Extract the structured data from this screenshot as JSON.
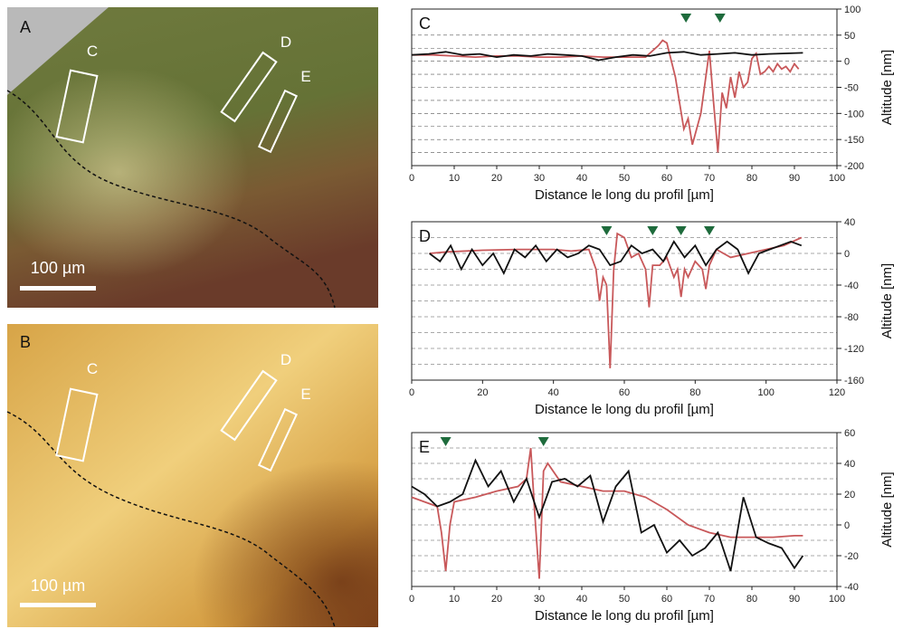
{
  "images": [
    {
      "label": "A",
      "regions": [
        "C",
        "D",
        "E"
      ],
      "scale_bar": "100 µm"
    },
    {
      "label": "B",
      "regions": [
        "C",
        "D",
        "E"
      ],
      "scale_bar": "100 µm"
    }
  ],
  "chart_data": [
    {
      "type": "line",
      "label": "C",
      "xlabel": "Distance le long du profil  [µm]",
      "ylabel": "Altitude [nm]",
      "xlim": [
        0,
        100
      ],
      "xticks": [
        0,
        10,
        20,
        30,
        40,
        50,
        60,
        70,
        80,
        90,
        100
      ],
      "ylim": [
        -200,
        100
      ],
      "yticks": [
        -200,
        -150,
        -100,
        -50,
        0,
        50,
        100
      ],
      "ygrid": [
        -175,
        -150,
        -125,
        -100,
        -75,
        -50,
        -25,
        0,
        25,
        50
      ],
      "markers": {
        "color": "#1e6b3c",
        "x": [
          64.5,
          72.5
        ]
      },
      "series": [
        {
          "color": "#c8585a",
          "x": [
            0,
            5,
            10,
            15,
            20,
            25,
            30,
            35,
            40,
            45,
            50,
            55,
            58,
            59,
            60,
            62,
            63,
            64,
            65,
            66,
            68,
            70,
            71,
            72,
            73,
            74,
            75,
            76,
            77,
            78,
            79,
            80,
            81,
            82,
            83,
            84,
            85,
            86,
            87,
            88,
            89,
            90,
            91
          ],
          "values": [
            12,
            12,
            10,
            8,
            10,
            10,
            8,
            8,
            10,
            8,
            8,
            8,
            30,
            40,
            35,
            -30,
            -80,
            -130,
            -110,
            -160,
            -100,
            20,
            -80,
            -175,
            -60,
            -90,
            -30,
            -70,
            -20,
            -50,
            -40,
            5,
            15,
            -25,
            -20,
            -10,
            -20,
            -5,
            -15,
            -10,
            -20,
            -5,
            -15
          ]
        },
        {
          "color": "#111111",
          "x": [
            0,
            4,
            8,
            12,
            16,
            20,
            24,
            28,
            32,
            36,
            40,
            44,
            48,
            52,
            56,
            60,
            64,
            68,
            72,
            76,
            80,
            84,
            88,
            92
          ],
          "values": [
            12,
            14,
            18,
            12,
            14,
            8,
            12,
            10,
            14,
            12,
            10,
            2,
            8,
            12,
            10,
            16,
            18,
            12,
            14,
            16,
            12,
            14,
            15,
            16
          ]
        }
      ]
    },
    {
      "type": "line",
      "label": "D",
      "xlabel": "Distance le long du profil  [µm]",
      "ylabel": "Altitude [nm]",
      "xlim": [
        0,
        120
      ],
      "xticks": [
        0,
        20,
        40,
        60,
        80,
        100,
        120
      ],
      "ylim": [
        -160,
        40
      ],
      "yticks": [
        -160,
        -120,
        -80,
        -40,
        0,
        40
      ],
      "ygrid": [
        -140,
        -120,
        -100,
        -80,
        -60,
        -40,
        -20,
        0,
        20
      ],
      "markers": {
        "color": "#1e6b3c",
        "x": [
          55,
          68,
          76,
          84
        ]
      },
      "series": [
        {
          "color": "#c8585a",
          "x": [
            5,
            10,
            20,
            30,
            40,
            45,
            50,
            52,
            53,
            54,
            55,
            56,
            57,
            58,
            60,
            62,
            64,
            66,
            67,
            68,
            70,
            72,
            74,
            75,
            76,
            77,
            78,
            80,
            82,
            83,
            84,
            86,
            90,
            100,
            105,
            110
          ],
          "values": [
            0,
            2,
            4,
            5,
            5,
            3,
            5,
            -20,
            -60,
            -30,
            -40,
            -145,
            -20,
            25,
            20,
            -5,
            0,
            -20,
            -68,
            -15,
            -15,
            -5,
            -30,
            -20,
            -55,
            -20,
            -30,
            -10,
            -20,
            -45,
            -15,
            5,
            -5,
            5,
            10,
            20
          ]
        },
        {
          "color": "#111111",
          "x": [
            5,
            8,
            11,
            14,
            17,
            20,
            23,
            26,
            29,
            32,
            35,
            38,
            41,
            44,
            47,
            50,
            53,
            56,
            59,
            62,
            65,
            68,
            71,
            74,
            77,
            80,
            83,
            86,
            89,
            92,
            95,
            98,
            101,
            104,
            107,
            110
          ],
          "values": [
            0,
            -10,
            10,
            -20,
            5,
            -15,
            0,
            -25,
            5,
            -5,
            10,
            -10,
            5,
            -5,
            0,
            10,
            5,
            -15,
            -10,
            10,
            0,
            5,
            -10,
            15,
            -5,
            10,
            -15,
            5,
            15,
            5,
            -25,
            0,
            5,
            10,
            15,
            10
          ]
        }
      ]
    },
    {
      "type": "line",
      "label": "E",
      "xlabel": "Distance le long du profil  [µm]",
      "ylabel": "Altitude [nm]",
      "xlim": [
        0,
        100
      ],
      "xticks": [
        0,
        10,
        20,
        30,
        40,
        50,
        60,
        70,
        80,
        90,
        100
      ],
      "ylim": [
        -40,
        60
      ],
      "yticks": [
        -40,
        -20,
        0,
        20,
        40,
        60
      ],
      "ygrid": [
        -30,
        -20,
        -10,
        0,
        10,
        20,
        30,
        40,
        50
      ],
      "markers": {
        "color": "#1e6b3c",
        "x": [
          8,
          31
        ]
      },
      "series": [
        {
          "color": "#c8585a",
          "x": [
            0,
            3,
            6,
            7,
            8,
            9,
            10,
            15,
            20,
            25,
            27,
            28,
            29,
            30,
            31,
            32,
            35,
            40,
            45,
            50,
            55,
            60,
            65,
            70,
            75,
            80,
            85,
            90,
            92
          ],
          "values": [
            18,
            15,
            12,
            -5,
            -30,
            0,
            15,
            18,
            22,
            25,
            30,
            50,
            5,
            -35,
            35,
            40,
            28,
            25,
            22,
            22,
            18,
            10,
            0,
            -5,
            -8,
            -8,
            -8,
            -7,
            -7
          ]
        },
        {
          "color": "#111111",
          "x": [
            0,
            3,
            6,
            9,
            12,
            15,
            18,
            21,
            24,
            27,
            30,
            33,
            36,
            39,
            42,
            45,
            48,
            51,
            54,
            57,
            60,
            63,
            66,
            69,
            72,
            75,
            78,
            81,
            84,
            87,
            90,
            92
          ],
          "values": [
            25,
            20,
            12,
            15,
            20,
            42,
            25,
            35,
            15,
            30,
            5,
            28,
            30,
            25,
            32,
            2,
            25,
            35,
            -5,
            0,
            -18,
            -10,
            -20,
            -15,
            -5,
            -30,
            18,
            -8,
            -12,
            -15,
            -28,
            -20
          ]
        }
      ]
    }
  ]
}
